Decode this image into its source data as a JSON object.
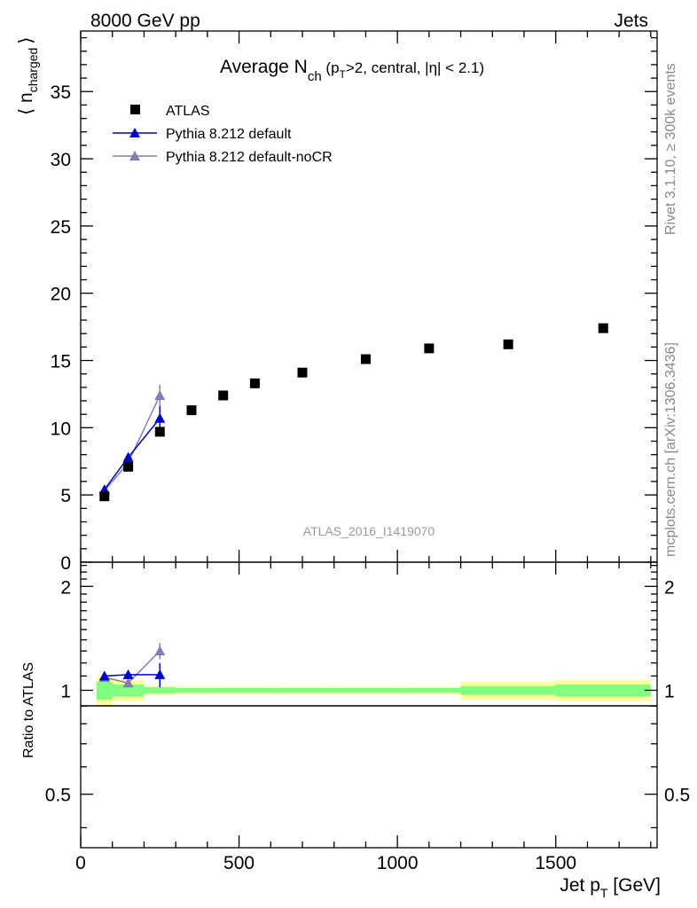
{
  "header": {
    "left": "8000 GeV pp",
    "right": "Jets",
    "side_rivet": "Rivet 3.1.10, ≥ 300k events",
    "side_mcplots": "mcplots.cern.ch [arXiv:1306.3436]",
    "watermark": "ATLAS_2016_I1419070"
  },
  "title": {
    "main": "Average N",
    "sub_ch": "ch",
    "rest_a": " (p",
    "sub_T": "T",
    "rest_b": ">2, central, |η| < 2.1)"
  },
  "axes": {
    "ylabel_main": "⟨ n",
    "ylabel_sub": "charged",
    "ylabel_close": "⟩",
    "ylabel_ratio": "Ratio to ATLAS",
    "xlabel": "Jet p",
    "xlabel_sub": "T",
    "xlabel_unit": " [GeV]"
  },
  "legend": [
    {
      "label": "ATLAS",
      "color": "#000000",
      "marker": "square"
    },
    {
      "label": "Pythia 8.212 default",
      "color": "#0000cc",
      "marker": "triangle"
    },
    {
      "label": "Pythia 8.212 default-noCR",
      "color": "#8080b0",
      "marker": "triangle"
    }
  ],
  "chart_data": {
    "type": "scatter",
    "xlim": [
      0,
      1820
    ],
    "ylim_main": [
      0,
      39.5
    ],
    "ylim_ratio": [
      0.35,
      2.35
    ],
    "x_ticks": [
      "0",
      "500",
      "1000",
      "1500"
    ],
    "y_ticks_main": [
      "0",
      "5",
      "10",
      "15",
      "20",
      "25",
      "30",
      "35"
    ],
    "y_ticks_ratio": [
      "0.5",
      "1",
      "2"
    ],
    "series": [
      {
        "name": "ATLAS",
        "x": [
          75,
          150,
          250,
          350,
          450,
          550,
          700,
          900,
          1100,
          1350,
          1650
        ],
        "y": [
          4.9,
          7.1,
          9.7,
          11.3,
          12.4,
          13.3,
          14.1,
          15.1,
          15.9,
          16.2,
          17.4
        ],
        "bins": [
          [
            50,
            100
          ],
          [
            100,
            200
          ],
          [
            200,
            300
          ],
          [
            300,
            400
          ],
          [
            400,
            500
          ],
          [
            500,
            600
          ],
          [
            600,
            800
          ],
          [
            800,
            1000
          ],
          [
            1000,
            1200
          ],
          [
            1200,
            1500
          ],
          [
            1500,
            1800
          ]
        ]
      },
      {
        "name": "Pythia 8.212 default",
        "x": [
          75,
          150,
          250
        ],
        "y": [
          5.4,
          7.8,
          10.7
        ],
        "yerr": [
          0.2,
          0.3,
          0.9
        ],
        "ratio": [
          1.1,
          1.11,
          1.11
        ],
        "ratio_err": [
          0.02,
          0.03,
          0.09
        ]
      },
      {
        "name": "Pythia 8.212 default-noCR",
        "x": [
          75,
          150,
          250
        ],
        "y": [
          5.3,
          7.4,
          12.4
        ],
        "yerr": [
          0.2,
          0.3,
          0.8
        ],
        "ratio": [
          1.09,
          1.05,
          1.3
        ],
        "ratio_err": [
          0.02,
          0.03,
          0.07
        ]
      }
    ],
    "ratio_bands": {
      "bins": [
        [
          50,
          100
        ],
        [
          100,
          200
        ],
        [
          200,
          300
        ],
        [
          300,
          400
        ],
        [
          400,
          500
        ],
        [
          500,
          600
        ],
        [
          600,
          800
        ],
        [
          800,
          1000
        ],
        [
          1000,
          1200
        ],
        [
          1200,
          1500
        ],
        [
          1500,
          1800
        ]
      ],
      "green_half_width": [
        0.06,
        0.04,
        0.02,
        0.015,
        0.015,
        0.015,
        0.015,
        0.015,
        0.015,
        0.03,
        0.04
      ],
      "yellow_half_width": [
        0.1,
        0.07,
        0.03,
        0.025,
        0.025,
        0.025,
        0.025,
        0.025,
        0.025,
        0.06,
        0.07
      ]
    },
    "colors": {
      "green": "#80ff80",
      "yellow": "#ffff99"
    }
  }
}
